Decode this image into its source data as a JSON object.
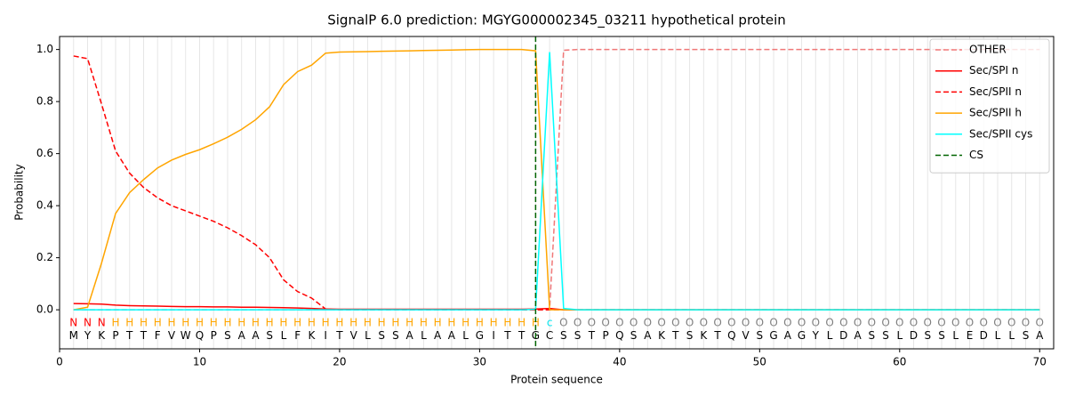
{
  "chart_data": {
    "type": "line",
    "title": "SignalP 6.0 prediction: MGYG000002345_03211 hypothetical protein",
    "xlabel": "Protein sequence",
    "ylabel": "Probability",
    "xlim": [
      0,
      71
    ],
    "ylim": [
      -0.15,
      1.05
    ],
    "xticks": [
      0,
      10,
      20,
      30,
      40,
      50,
      60,
      70
    ],
    "yticks": [
      {
        "value": 0,
        "label": "0.0"
      },
      {
        "value": 0.2,
        "label": "0.2"
      },
      {
        "value": 0.4,
        "label": "0.4"
      },
      {
        "value": 0.6,
        "label": "0.6"
      },
      {
        "value": 0.8,
        "label": "0.8"
      },
      {
        "value": 1.0,
        "label": "1.0"
      }
    ],
    "xgrid": true,
    "legend": "upper right",
    "x": [
      1,
      2,
      3,
      4,
      5,
      6,
      7,
      8,
      9,
      10,
      11,
      12,
      13,
      14,
      15,
      16,
      17,
      18,
      19,
      20,
      21,
      22,
      23,
      24,
      25,
      26,
      27,
      28,
      29,
      30,
      31,
      32,
      33,
      34,
      35,
      36,
      37,
      38,
      39,
      40,
      41,
      42,
      43,
      44,
      45,
      46,
      47,
      48,
      49,
      50,
      51,
      52,
      53,
      54,
      55,
      56,
      57,
      58,
      59,
      60,
      61,
      62,
      63,
      64,
      65,
      66,
      67,
      68,
      69,
      70
    ],
    "sequence": [
      "M",
      "Y",
      "K",
      "P",
      "T",
      "T",
      "F",
      "V",
      "W",
      "Q",
      "P",
      "S",
      "A",
      "A",
      "S",
      "L",
      "F",
      "K",
      "I",
      "T",
      "V",
      "L",
      "S",
      "S",
      "A",
      "L",
      "A",
      "A",
      "L",
      "G",
      "I",
      "T",
      "T",
      "G",
      "C",
      "S",
      "S",
      "T",
      "P",
      "Q",
      "S",
      "A",
      "K",
      "T",
      "S",
      "K",
      "T",
      "Q",
      "V",
      "S",
      "G",
      "A",
      "G",
      "Y",
      "L",
      "D",
      "A",
      "S",
      "S",
      "L",
      "D",
      "S",
      "S",
      "L",
      "E",
      "D",
      "L",
      "L",
      "S",
      "A"
    ],
    "labels": [
      "N",
      "N",
      "N",
      "H",
      "H",
      "H",
      "H",
      "H",
      "H",
      "H",
      "H",
      "H",
      "H",
      "H",
      "H",
      "H",
      "H",
      "H",
      "H",
      "H",
      "H",
      "H",
      "H",
      "H",
      "H",
      "H",
      "H",
      "H",
      "H",
      "H",
      "H",
      "H",
      "H",
      "H",
      "c",
      "O",
      "O",
      "O",
      "O",
      "O",
      "O",
      "O",
      "O",
      "O",
      "O",
      "O",
      "O",
      "O",
      "O",
      "O",
      "O",
      "O",
      "O",
      "O",
      "O",
      "O",
      "O",
      "O",
      "O",
      "O",
      "O",
      "O",
      "O",
      "O",
      "O",
      "O",
      "O",
      "O",
      "O",
      "O"
    ],
    "label_colors": {
      "N": "#ff0000",
      "H": "#ffa500",
      "c": "#00e5ee",
      "O": "#808080"
    },
    "series": [
      {
        "name": "OTHER",
        "color": "#f07878",
        "dashed": true,
        "values": [
          0,
          0,
          0,
          0,
          0,
          0,
          0,
          0,
          0,
          0,
          0,
          0,
          0,
          0,
          0,
          0,
          0,
          0,
          0,
          0,
          0,
          0,
          0,
          0,
          0,
          0,
          0,
          0,
          0,
          0,
          0,
          0,
          0,
          0,
          0,
          0.997,
          1,
          1,
          1,
          1,
          1,
          1,
          1,
          1,
          1,
          1,
          1,
          1,
          1,
          1,
          1,
          1,
          1,
          1,
          1,
          1,
          1,
          1,
          1,
          1,
          1,
          1,
          1,
          1,
          1,
          1,
          1,
          1,
          1,
          1
        ]
      },
      {
        "name": "Sec/SPI n",
        "color": "#ff0000",
        "dashed": false,
        "values": [
          0.024,
          0.023,
          0.022,
          0.018,
          0.016,
          0.015,
          0.014,
          0.013,
          0.012,
          0.012,
          0.011,
          0.011,
          0.01,
          0.01,
          0.009,
          0.008,
          0.007,
          0.005,
          0.003,
          0.002,
          0.002,
          0.002,
          0.002,
          0.002,
          0.002,
          0.002,
          0.002,
          0.002,
          0.002,
          0.002,
          0.002,
          0.002,
          0.002,
          0.003,
          0.005,
          0,
          0,
          0,
          0,
          0,
          0,
          0,
          0,
          0,
          0,
          0,
          0,
          0,
          0,
          0,
          0,
          0,
          0,
          0,
          0,
          0,
          0,
          0,
          0,
          0,
          0,
          0,
          0,
          0,
          0,
          0,
          0,
          0,
          0,
          0
        ]
      },
      {
        "name": "Sec/SPII n",
        "color": "#ff0000",
        "dashed": true,
        "values": [
          0.975,
          0.965,
          0.79,
          0.61,
          0.525,
          0.47,
          0.43,
          0.4,
          0.38,
          0.36,
          0.34,
          0.315,
          0.285,
          0.25,
          0.2,
          0.115,
          0.07,
          0.045,
          0.003,
          0,
          0,
          0,
          0,
          0,
          0,
          0,
          0,
          0,
          0,
          0,
          0,
          0,
          0,
          0,
          0,
          0,
          0,
          0,
          0,
          0,
          0,
          0,
          0,
          0,
          0,
          0,
          0,
          0,
          0,
          0,
          0,
          0,
          0,
          0,
          0,
          0,
          0,
          0,
          0,
          0,
          0,
          0,
          0,
          0,
          0,
          0,
          0,
          0,
          0,
          0
        ]
      },
      {
        "name": "Sec/SPII h",
        "color": "#ffa500",
        "dashed": false,
        "values": [
          0,
          0.01,
          0.18,
          0.37,
          0.45,
          0.5,
          0.545,
          0.575,
          0.597,
          0.615,
          0.638,
          0.663,
          0.693,
          0.73,
          0.78,
          0.865,
          0.915,
          0.94,
          0.986,
          0.99,
          0.991,
          0.992,
          0.993,
          0.994,
          0.995,
          0.996,
          0.997,
          0.998,
          0.999,
          1,
          1,
          1,
          1,
          0.995,
          0,
          0,
          0,
          0,
          0,
          0,
          0,
          0,
          0,
          0,
          0,
          0,
          0,
          0,
          0,
          0,
          0,
          0,
          0,
          0,
          0,
          0,
          0,
          0,
          0,
          0,
          0,
          0,
          0,
          0,
          0,
          0,
          0,
          0,
          0,
          0
        ]
      },
      {
        "name": "Sec/SPII cys",
        "color": "#00ffff",
        "dashed": false,
        "values": [
          0,
          0,
          0,
          0,
          0,
          0,
          0,
          0,
          0,
          0,
          0,
          0,
          0,
          0,
          0,
          0,
          0,
          0,
          0,
          0,
          0,
          0,
          0,
          0,
          0,
          0,
          0,
          0,
          0,
          0,
          0,
          0,
          0,
          0.002,
          0.99,
          0.005,
          0,
          0,
          0,
          0,
          0,
          0,
          0,
          0,
          0,
          0,
          0,
          0,
          0,
          0,
          0,
          0,
          0,
          0,
          0,
          0,
          0,
          0,
          0,
          0,
          0,
          0,
          0,
          0,
          0,
          0,
          0,
          0,
          0,
          0
        ]
      }
    ],
    "cs": {
      "name": "CS",
      "color": "#006400",
      "x": 34
    }
  }
}
